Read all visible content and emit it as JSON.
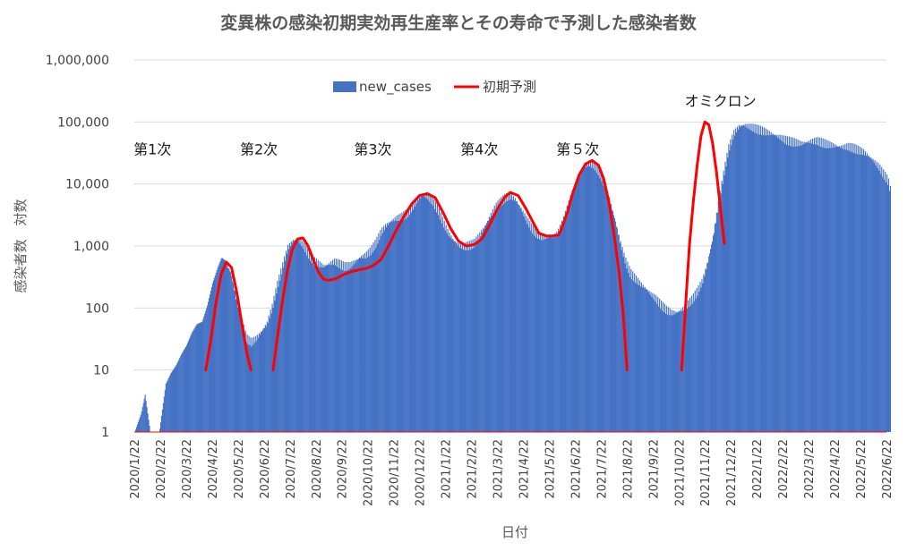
{
  "chart_data": {
    "type": "bar",
    "title": "変異株の感染初期実効再生産率とその寿命で予測した感染者数",
    "xlabel": "日付",
    "ylabel": "感染者数　対数",
    "yscale": "log",
    "ylim": [
      1,
      1000000
    ],
    "y_ticks": [
      "1",
      "10",
      "100",
      "1,000",
      "10,000",
      "100,000",
      "1,000,000"
    ],
    "x_ticks": [
      "2020/1/22",
      "2020/2/22",
      "2020/3/22",
      "2020/4/22",
      "2020/5/22",
      "2020/6/22",
      "2020/7/22",
      "2020/8/22",
      "2020/9/22",
      "2020/10/22",
      "2020/11/22",
      "2020/12/22",
      "2021/1/22",
      "2021/2/22",
      "2021/3/22",
      "2021/4/22",
      "2021/5/22",
      "2021/6/22",
      "2021/7/22",
      "2021/8/22",
      "2021/9/22",
      "2021/10/22",
      "2021/11/22",
      "2021/12/22",
      "2022/1/22",
      "2022/2/22",
      "2022/3/22",
      "2022/4/22",
      "2022/5/22",
      "2022/6/22"
    ],
    "grid": true,
    "legend_position": "top",
    "colors": {
      "bars": "#4472C4",
      "prediction": "#FF0000",
      "grid": "#D9D9D9",
      "axis": "#FF0000"
    },
    "series": [
      {
        "name": "new_cases",
        "type": "bar",
        "x_unit": "months since 2020/1/22",
        "points": [
          [
            0.0,
            1
          ],
          [
            0.25,
            2
          ],
          [
            0.4,
            4
          ],
          [
            0.6,
            1
          ],
          [
            0.95,
            1
          ],
          [
            1.2,
            6
          ],
          [
            1.4,
            9
          ],
          [
            1.6,
            12
          ],
          [
            1.8,
            18
          ],
          [
            2.0,
            25
          ],
          [
            2.2,
            40
          ],
          [
            2.4,
            55
          ],
          [
            2.6,
            60
          ],
          [
            2.8,
            110
          ],
          [
            3.0,
            250
          ],
          [
            3.2,
            450
          ],
          [
            3.35,
            650
          ],
          [
            3.5,
            580
          ],
          [
            3.7,
            400
          ],
          [
            3.9,
            160
          ],
          [
            4.1,
            70
          ],
          [
            4.3,
            35
          ],
          [
            4.5,
            30
          ],
          [
            4.7,
            35
          ],
          [
            4.9,
            45
          ],
          [
            5.1,
            60
          ],
          [
            5.3,
            110
          ],
          [
            5.5,
            250
          ],
          [
            5.7,
            500
          ],
          [
            5.9,
            1000
          ],
          [
            6.1,
            1300
          ],
          [
            6.3,
            1350
          ],
          [
            6.5,
            1100
          ],
          [
            6.7,
            800
          ],
          [
            6.9,
            620
          ],
          [
            7.1,
            550
          ],
          [
            7.3,
            500
          ],
          [
            7.5,
            550
          ],
          [
            7.7,
            600
          ],
          [
            7.9,
            550
          ],
          [
            8.1,
            500
          ],
          [
            8.3,
            520
          ],
          [
            8.5,
            600
          ],
          [
            8.7,
            700
          ],
          [
            8.9,
            750
          ],
          [
            9.1,
            900
          ],
          [
            9.3,
            1200
          ],
          [
            9.5,
            1800
          ],
          [
            9.7,
            2300
          ],
          [
            9.9,
            2700
          ],
          [
            10.1,
            3000
          ],
          [
            10.3,
            3200
          ],
          [
            10.5,
            3600
          ],
          [
            10.7,
            4500
          ],
          [
            10.9,
            6000
          ],
          [
            11.1,
            7000
          ],
          [
            11.3,
            6500
          ],
          [
            11.5,
            5500
          ],
          [
            11.7,
            4000
          ],
          [
            11.9,
            2500
          ],
          [
            12.1,
            1700
          ],
          [
            12.3,
            1300
          ],
          [
            12.5,
            1100
          ],
          [
            12.7,
            1050
          ],
          [
            12.9,
            1100
          ],
          [
            13.1,
            1200
          ],
          [
            13.3,
            1600
          ],
          [
            13.5,
            2200
          ],
          [
            13.7,
            3200
          ],
          [
            13.9,
            4500
          ],
          [
            14.1,
            5500
          ],
          [
            14.3,
            6500
          ],
          [
            14.5,
            6800
          ],
          [
            14.7,
            5800
          ],
          [
            14.9,
            4200
          ],
          [
            15.1,
            2900
          ],
          [
            15.3,
            2100
          ],
          [
            15.5,
            1700
          ],
          [
            15.7,
            1500
          ],
          [
            15.9,
            1500
          ],
          [
            16.1,
            1500
          ],
          [
            16.3,
            1700
          ],
          [
            16.5,
            2500
          ],
          [
            16.7,
            4500
          ],
          [
            16.9,
            8000
          ],
          [
            17.1,
            13000
          ],
          [
            17.3,
            19000
          ],
          [
            17.5,
            23000
          ],
          [
            17.7,
            22000
          ],
          [
            17.9,
            17000
          ],
          [
            18.1,
            11000
          ],
          [
            18.3,
            6000
          ],
          [
            18.5,
            3000
          ],
          [
            18.7,
            1300
          ],
          [
            18.9,
            650
          ],
          [
            19.1,
            400
          ],
          [
            19.3,
            320
          ],
          [
            19.5,
            260
          ],
          [
            19.7,
            220
          ],
          [
            19.9,
            180
          ],
          [
            20.1,
            150
          ],
          [
            20.3,
            120
          ],
          [
            20.5,
            100
          ],
          [
            20.7,
            90
          ],
          [
            20.9,
            90
          ],
          [
            21.1,
            100
          ],
          [
            21.3,
            120
          ],
          [
            21.5,
            150
          ],
          [
            21.7,
            200
          ],
          [
            21.9,
            300
          ],
          [
            22.1,
            600
          ],
          [
            22.3,
            1500
          ],
          [
            22.5,
            5000
          ],
          [
            22.7,
            15000
          ],
          [
            22.9,
            40000
          ],
          [
            23.1,
            70000
          ],
          [
            23.3,
            90000
          ],
          [
            23.5,
            95000
          ],
          [
            23.7,
            90000
          ],
          [
            23.9,
            85000
          ],
          [
            24.1,
            80000
          ],
          [
            24.3,
            75000
          ],
          [
            24.5,
            70000
          ],
          [
            24.7,
            65000
          ],
          [
            24.9,
            60000
          ],
          [
            25.1,
            55000
          ],
          [
            25.3,
            52000
          ],
          [
            25.5,
            50000
          ],
          [
            25.7,
            48000
          ],
          [
            25.9,
            50000
          ],
          [
            26.1,
            52000
          ],
          [
            26.3,
            53000
          ],
          [
            26.5,
            50000
          ],
          [
            26.7,
            47000
          ],
          [
            26.9,
            45000
          ],
          [
            27.1,
            43000
          ],
          [
            27.3,
            42000
          ],
          [
            27.5,
            43000
          ],
          [
            27.7,
            41000
          ],
          [
            27.9,
            38000
          ],
          [
            28.1,
            35000
          ],
          [
            28.3,
            30000
          ],
          [
            28.5,
            25000
          ],
          [
            28.7,
            20000
          ],
          [
            28.9,
            15000
          ],
          [
            29.05,
            12000
          ],
          [
            29.15,
            8000
          ]
        ]
      },
      {
        "name": "初期予測",
        "type": "line",
        "x_unit": "months since 2020/1/22",
        "segments": [
          [
            [
              2.75,
              10
            ],
            [
              2.95,
              30
            ],
            [
              3.15,
              120
            ],
            [
              3.35,
              350
            ],
            [
              3.55,
              550
            ],
            [
              3.75,
              450
            ],
            [
              3.95,
              180
            ],
            [
              4.15,
              55
            ],
            [
              4.35,
              18
            ],
            [
              4.5,
              10
            ]
          ],
          [
            [
              5.35,
              10
            ],
            [
              5.5,
              30
            ],
            [
              5.7,
              120
            ],
            [
              5.9,
              400
            ],
            [
              6.1,
              900
            ],
            [
              6.3,
              1300
            ],
            [
              6.5,
              1350
            ],
            [
              6.7,
              1000
            ],
            [
              6.9,
              600
            ],
            [
              7.1,
              380
            ],
            [
              7.3,
              290
            ],
            [
              7.5,
              280
            ],
            [
              7.8,
              300
            ],
            [
              8.1,
              350
            ],
            [
              8.5,
              400
            ],
            [
              8.9,
              430
            ],
            [
              9.2,
              480
            ],
            [
              9.5,
              600
            ],
            [
              9.8,
              1000
            ],
            [
              10.1,
              1800
            ],
            [
              10.4,
              3000
            ],
            [
              10.7,
              4800
            ],
            [
              11.0,
              6500
            ],
            [
              11.3,
              7000
            ],
            [
              11.6,
              6000
            ],
            [
              11.9,
              3500
            ],
            [
              12.2,
              1900
            ],
            [
              12.5,
              1200
            ],
            [
              12.8,
              1000
            ],
            [
              13.1,
              1050
            ],
            [
              13.4,
              1300
            ],
            [
              13.7,
              2200
            ],
            [
              14.0,
              4000
            ],
            [
              14.3,
              6200
            ],
            [
              14.5,
              7300
            ],
            [
              14.8,
              6500
            ],
            [
              15.1,
              4000
            ],
            [
              15.4,
              2300
            ],
            [
              15.6,
              1600
            ],
            [
              15.9,
              1450
            ],
            [
              16.1,
              1450
            ],
            [
              16.35,
              1500
            ],
            [
              16.45,
              1800
            ],
            [
              16.7,
              3500
            ],
            [
              16.9,
              7000
            ],
            [
              17.15,
              14000
            ],
            [
              17.4,
              21000
            ],
            [
              17.65,
              24000
            ],
            [
              17.9,
              20000
            ],
            [
              18.1,
              12000
            ],
            [
              18.3,
              5000
            ],
            [
              18.5,
              1500
            ],
            [
              18.7,
              350
            ],
            [
              18.85,
              80
            ],
            [
              19.0,
              10
            ]
          ],
          [
            [
              21.1,
              10
            ],
            [
              21.25,
              100
            ],
            [
              21.4,
              1000
            ],
            [
              21.55,
              5000
            ],
            [
              21.7,
              20000
            ],
            [
              21.85,
              60000
            ],
            [
              22.0,
              100000
            ],
            [
              22.15,
              90000
            ],
            [
              22.3,
              45000
            ],
            [
              22.45,
              15000
            ],
            [
              22.6,
              4000
            ],
            [
              22.75,
              1100
            ]
          ]
        ]
      }
    ],
    "annotations": [
      {
        "text": "第1次",
        "x": 0.7,
        "y": 30000
      },
      {
        "text": "第2次",
        "x": 4.8,
        "y": 30000
      },
      {
        "text": "第3次",
        "x": 9.2,
        "y": 30000
      },
      {
        "text": "第4次",
        "x": 13.3,
        "y": 30000
      },
      {
        "text": "第５次",
        "x": 17.1,
        "y": 30000
      },
      {
        "text": "オミクロン",
        "x": 22.6,
        "y": 180000
      }
    ]
  }
}
